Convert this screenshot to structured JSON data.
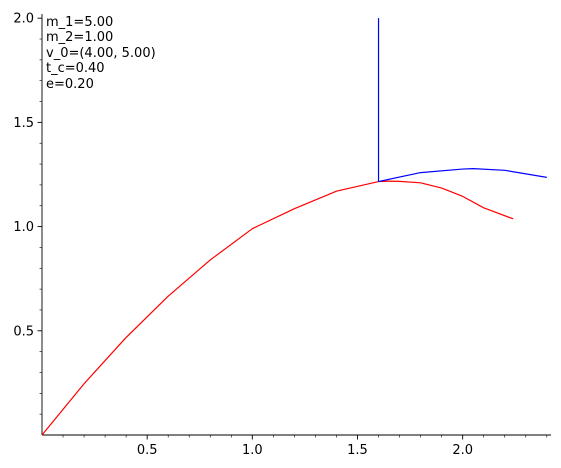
{
  "chart_data": {
    "type": "line",
    "title": "",
    "xlabel": "",
    "ylabel": "",
    "xlim": [
      0,
      2.42
    ],
    "ylim": [
      0,
      2.02
    ],
    "grid": false,
    "xticks": [
      0.5,
      1.0,
      1.5,
      2.0
    ],
    "yticks": [
      0.5,
      1.0,
      1.5,
      2.0
    ],
    "xtick_labels": [
      "0.5",
      "1.0",
      "1.5",
      "2.0"
    ],
    "ytick_labels": [
      "0.5",
      "1.0",
      "1.5",
      "2.0"
    ],
    "annotations": [
      "m_1=5.00",
      "m_2=1.00",
      "v_0=(4.00, 5.00)",
      "t_c=0.40",
      "e=0.20"
    ],
    "series": [
      {
        "color": "#ff0000",
        "x": [
          0.0,
          0.2,
          0.4,
          0.6,
          0.8,
          1.0,
          1.2,
          1.4,
          1.6,
          1.65,
          1.7,
          1.8,
          1.9,
          2.0,
          2.1,
          2.24
        ],
        "y": [
          0.0,
          0.246,
          0.468,
          0.666,
          0.84,
          0.99,
          1.086,
          1.17,
          1.216,
          1.218,
          1.217,
          1.21,
          1.185,
          1.145,
          1.09,
          1.037
        ]
      },
      {
        "color": "#0000ff",
        "x": [
          1.6,
          1.6
        ],
        "y": [
          2.0,
          1.216
        ]
      },
      {
        "color": "#0000ff",
        "x": [
          1.6,
          1.8,
          2.0,
          2.05,
          2.2,
          2.4
        ],
        "y": [
          1.216,
          1.259,
          1.276,
          1.278,
          1.27,
          1.236
        ]
      }
    ]
  }
}
